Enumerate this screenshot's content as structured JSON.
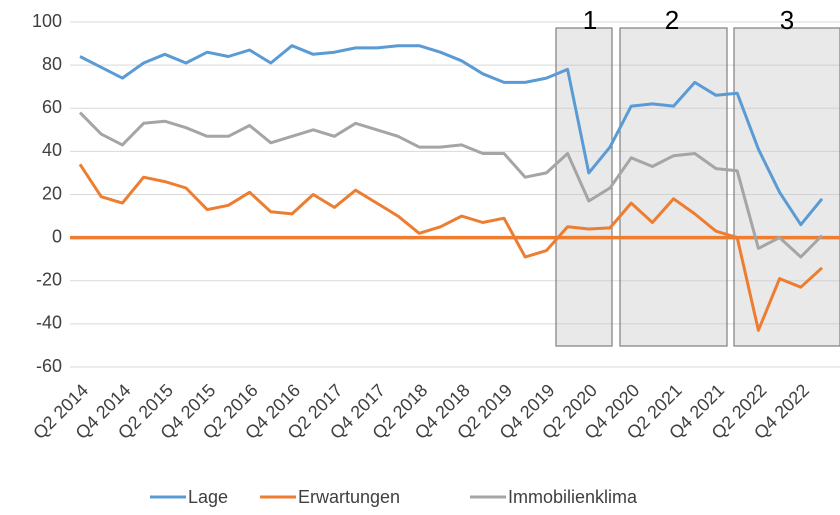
{
  "chart_data": {
    "type": "line",
    "categories": [
      "Q2 2014",
      null,
      "Q4 2014",
      null,
      "Q2 2015",
      null,
      "Q4 2015",
      null,
      "Q2 2016",
      null,
      "Q4 2016",
      null,
      "Q2 2017",
      null,
      "Q4 2017",
      null,
      "Q2 2018",
      null,
      "Q4 2018",
      null,
      "Q2 2019",
      null,
      "Q4 2019",
      null,
      "Q2 2020",
      null,
      "Q4 2020",
      null,
      "Q2 2021",
      null,
      "Q4 2021",
      null,
      "Q2 2022",
      null,
      "Q4 2022",
      null
    ],
    "series": [
      {
        "name": "Lage",
        "color": "#5b9bd5",
        "values": [
          84,
          79,
          74,
          81,
          85,
          81,
          86,
          84,
          87,
          81,
          89,
          85,
          86,
          88,
          88,
          89,
          89,
          86,
          82,
          76,
          72,
          72,
          74,
          78,
          30,
          42,
          61,
          62,
          61,
          72,
          66,
          67,
          41,
          21,
          6,
          18
        ]
      },
      {
        "name": "Erwartungen",
        "color": "#ed7d31",
        "values": [
          34,
          19,
          16,
          28,
          26,
          23,
          13,
          15,
          21,
          12,
          11,
          20,
          14,
          22,
          16,
          10,
          2,
          5,
          10,
          7,
          9,
          -9,
          -6,
          5,
          4,
          4.5,
          16,
          7,
          18,
          11,
          3,
          0,
          -43,
          -19,
          -23,
          -14
        ]
      },
      {
        "name": "Immobilienklima",
        "color": "#a5a5a5",
        "values": [
          58,
          48,
          43,
          53,
          54,
          51,
          47,
          47,
          52,
          44,
          47,
          50,
          47,
          53,
          50,
          47,
          42,
          42,
          43,
          39,
          39,
          28,
          30,
          39,
          17,
          23,
          37,
          33,
          38,
          39,
          32,
          31,
          -5,
          0,
          -9,
          1
        ]
      }
    ],
    "ylim": [
      -60,
      100
    ],
    "yticks": [
      -60,
      -40,
      -20,
      0,
      20,
      40,
      60,
      80,
      100
    ],
    "grid": true,
    "annotations": [
      "1",
      "2",
      "3"
    ]
  }
}
